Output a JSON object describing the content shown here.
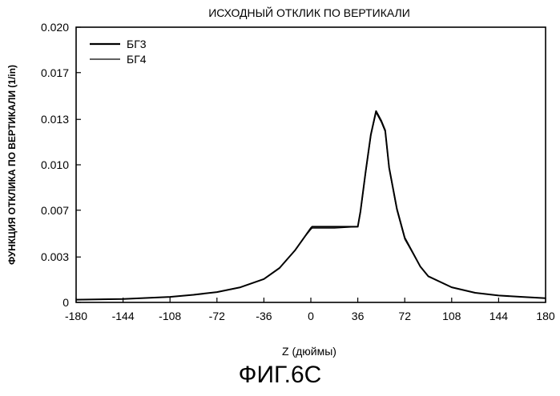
{
  "chart_data": {
    "type": "line",
    "title": "ИСХОДНЫЙ ОТКЛИК ПО ВЕРТИКАЛИ",
    "xlabel": "Z (дюймы)",
    "ylabel": "ФУНКЦИЯ ОТКЛИКА ПО ВЕРТИКАЛИ (1/in)",
    "xlim": [
      -180,
      180
    ],
    "ylim": [
      0,
      0.02
    ],
    "xticks": [
      -180,
      -144,
      -108,
      -72,
      -36,
      0,
      36,
      72,
      108,
      144,
      180
    ],
    "yticks": [
      {
        "value": 0,
        "label": "0"
      },
      {
        "value": 0.0033,
        "label": "0.003"
      },
      {
        "value": 0.0067,
        "label": "0.007"
      },
      {
        "value": 0.01,
        "label": "0.010"
      },
      {
        "value": 0.0133,
        "label": "0.013"
      },
      {
        "value": 0.0167,
        "label": "0.017"
      },
      {
        "value": 0.02,
        "label": "0.020"
      }
    ],
    "grid": false,
    "legend_position": "top-left",
    "series": [
      {
        "name": "БГ3",
        "x": [
          -180,
          -144,
          -108,
          -90,
          -72,
          -54,
          -36,
          -24,
          -12,
          -6,
          0,
          1,
          18,
          36,
          38,
          42,
          46,
          50,
          54,
          57,
          60,
          66,
          72,
          84,
          90,
          108,
          126,
          144,
          162,
          180
        ],
        "values": [
          0.0002,
          0.00025,
          0.0004,
          0.00055,
          0.00075,
          0.0011,
          0.0017,
          0.0025,
          0.0038,
          0.0046,
          0.0054,
          0.0055,
          0.0055,
          0.0055,
          0.0066,
          0.0095,
          0.0122,
          0.0139,
          0.0132,
          0.0125,
          0.0098,
          0.0068,
          0.0047,
          0.0026,
          0.0019,
          0.0011,
          0.0007,
          0.0005,
          0.0004,
          0.0003
        ]
      },
      {
        "name": "БГ4",
        "x": [
          -180,
          -144,
          -108,
          -90,
          -72,
          -54,
          -36,
          -24,
          -12,
          -6,
          0,
          1,
          18,
          36,
          38,
          42,
          46,
          50,
          54,
          57,
          60,
          66,
          72,
          84,
          90,
          108,
          126,
          144,
          162,
          180
        ],
        "values": [
          0.0002,
          0.00025,
          0.0004,
          0.00055,
          0.00075,
          0.0011,
          0.0017,
          0.0025,
          0.0038,
          0.0046,
          0.0053,
          0.0054,
          0.0054,
          0.0055,
          0.0065,
          0.0094,
          0.0121,
          0.0138,
          0.0131,
          0.0124,
          0.0097,
          0.0067,
          0.0046,
          0.0026,
          0.0019,
          0.0011,
          0.0007,
          0.0005,
          0.0004,
          0.0003
        ]
      }
    ]
  },
  "figure_caption": "ФИГ.6С"
}
